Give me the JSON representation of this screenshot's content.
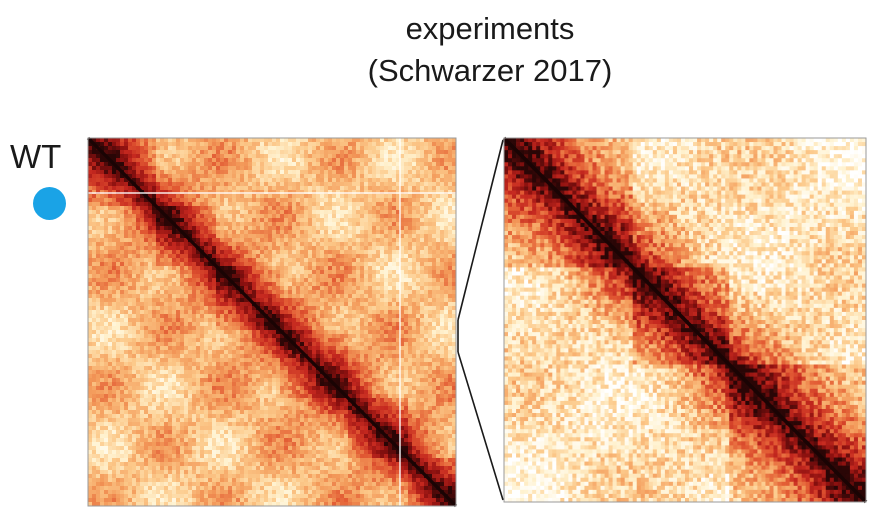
{
  "title": {
    "line1": "experiments",
    "line2": "(Schwarzer 2017)"
  },
  "condition": {
    "label": "WT",
    "marker_color": "#1aa3e6"
  },
  "colormap": [
    "#ffffff",
    "#fff2cf",
    "#fcc98a",
    "#f39a5a",
    "#e25a33",
    "#c5281f",
    "#8a100f",
    "#2a0606"
  ],
  "panels": [
    {
      "name": "full-contact-map"
    },
    {
      "name": "zoomed-contact-map"
    }
  ]
}
